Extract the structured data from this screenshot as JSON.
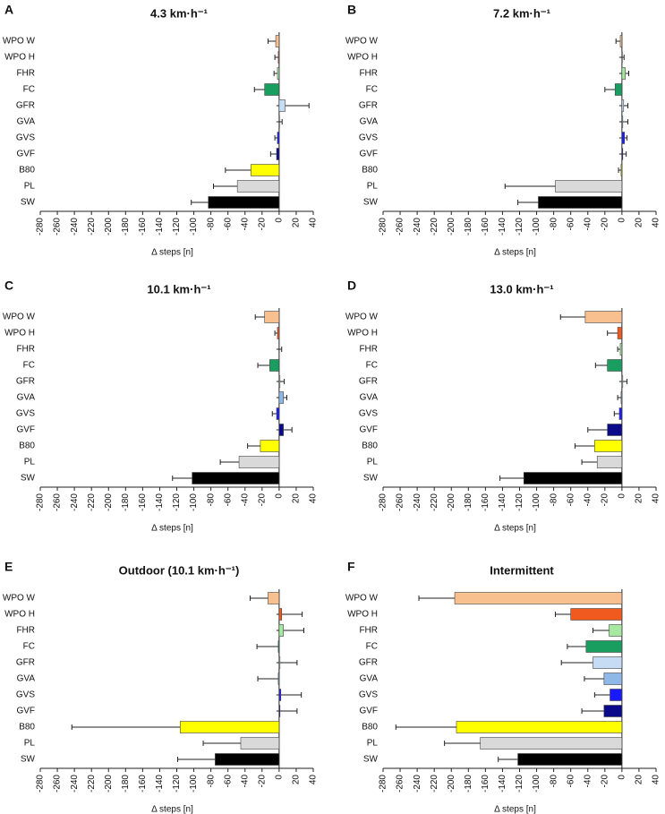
{
  "chart_data": [
    {
      "type": "bar",
      "orientation": "horizontal",
      "label": "A",
      "title": "4.3 km·h⁻¹",
      "categories": [
        "WPO W",
        "WPO H",
        "FHR",
        "FC",
        "GFR",
        "GVA",
        "GVS",
        "GVF",
        "B80",
        "PL",
        "SW"
      ],
      "values": [
        -4,
        -1,
        -2,
        -17,
        7,
        0.5,
        -2,
        -3,
        -33,
        -49,
        -83
      ],
      "errors": [
        9,
        4,
        4,
        12,
        28,
        3,
        3,
        7,
        30,
        28,
        20
      ],
      "colors": [
        "#f9c08f",
        "#f05a1e",
        "#a6e8a0",
        "#1a9e60",
        "#c6dcf5",
        "#8db8e8",
        "#1a1aff",
        "#0a0a8a",
        "#ffff00",
        "#d9d9d9",
        "#000000"
      ],
      "xlabel": "Δ steps [n]",
      "xlim": [
        -280,
        40
      ],
      "xticks": [
        -280,
        -260,
        -240,
        -220,
        -200,
        -180,
        -160,
        -140,
        -120,
        -100,
        -80,
        -60,
        -40,
        -20,
        0,
        20,
        40
      ]
    },
    {
      "type": "bar",
      "orientation": "horizontal",
      "label": "B",
      "title": "7.2 km·h⁻¹",
      "categories": [
        "WPO W",
        "WPO H",
        "FHR",
        "FC",
        "GFR",
        "GVA",
        "GVS",
        "GVF",
        "B80",
        "PL",
        "SW"
      ],
      "values": [
        -2,
        0.5,
        4,
        -8,
        2,
        1,
        3,
        1,
        -1,
        -78,
        -98
      ],
      "errors": [
        5,
        2,
        4,
        12,
        5,
        6,
        3,
        4,
        3,
        59,
        24
      ],
      "colors": [
        "#f9c08f",
        "#f05a1e",
        "#a6e8a0",
        "#1a9e60",
        "#c6dcf5",
        "#8db8e8",
        "#1a1aff",
        "#0a0a8a",
        "#ffff00",
        "#d9d9d9",
        "#000000"
      ],
      "xlabel": "Δ steps [n]",
      "xlim": [
        -280,
        40
      ],
      "xticks": [
        -280,
        -260,
        -240,
        -220,
        -200,
        -180,
        -160,
        -140,
        -120,
        -100,
        -80,
        -60,
        -40,
        -20,
        0,
        20,
        40
      ]
    },
    {
      "type": "bar",
      "orientation": "horizontal",
      "label": "C",
      "title": "10.1 km·h⁻¹",
      "categories": [
        "WPO W",
        "WPO H",
        "FHR",
        "FC",
        "GFR",
        "GVA",
        "GVS",
        "GVF",
        "B80",
        "PL",
        "SW"
      ],
      "values": [
        -17,
        -2,
        0,
        -11,
        1,
        5,
        -3,
        5,
        -22,
        -47,
        -102
      ],
      "errors": [
        11,
        3,
        3,
        14,
        5,
        4,
        5,
        10,
        15,
        22,
        23
      ],
      "colors": [
        "#f9c08f",
        "#f05a1e",
        "#a6e8a0",
        "#1a9e60",
        "#c6dcf5",
        "#8db8e8",
        "#1a1aff",
        "#0a0a8a",
        "#ffff00",
        "#d9d9d9",
        "#000000"
      ],
      "xlabel": "Δ steps [n]",
      "xlim": [
        -280,
        40
      ],
      "xticks": [
        -280,
        -260,
        -240,
        -220,
        -200,
        -180,
        -160,
        -140,
        -120,
        -100,
        -80,
        -60,
        -40,
        -20,
        0,
        20,
        40
      ]
    },
    {
      "type": "bar",
      "orientation": "horizontal",
      "label": "D",
      "title": "13.0 km·h⁻¹",
      "categories": [
        "WPO W",
        "WPO H",
        "FHR",
        "FC",
        "GFR",
        "GVA",
        "GVS",
        "GVF",
        "B80",
        "PL",
        "SW"
      ],
      "values": [
        -43,
        -5,
        -2,
        -17,
        1,
        -1,
        -3,
        -17,
        -32,
        -29,
        -115
      ],
      "errors": [
        29,
        12,
        3,
        14,
        5,
        4,
        6,
        23,
        23,
        18,
        28
      ],
      "colors": [
        "#f9c08f",
        "#f05a1e",
        "#a6e8a0",
        "#1a9e60",
        "#c6dcf5",
        "#8db8e8",
        "#1a1aff",
        "#0a0a8a",
        "#ffff00",
        "#d9d9d9",
        "#000000"
      ],
      "xlabel": "Δ steps [n]",
      "xlim": [
        -280,
        40
      ],
      "xticks": [
        -280,
        -260,
        -240,
        -220,
        -200,
        -180,
        -160,
        -140,
        -120,
        -100,
        -80,
        -60,
        -40,
        -20,
        0,
        20,
        40
      ]
    },
    {
      "type": "bar",
      "orientation": "horizontal",
      "label": "E",
      "title": "Outdoor (10.1 km·h⁻¹)",
      "categories": [
        "WPO W",
        "WPO H",
        "FHR",
        "FC",
        "GFR",
        "GVA",
        "GVS",
        "GVF",
        "B80",
        "PL",
        "SW"
      ],
      "values": [
        -13,
        3,
        5,
        -1,
        1,
        -1,
        2,
        1,
        -116,
        -45,
        -75
      ],
      "errors": [
        21,
        24,
        24,
        25,
        20,
        24,
        24,
        20,
        127,
        44,
        44
      ],
      "colors": [
        "#f9c08f",
        "#f05a1e",
        "#a6e8a0",
        "#1a9e60",
        "#c6dcf5",
        "#8db8e8",
        "#1a1aff",
        "#0a0a8a",
        "#ffff00",
        "#d9d9d9",
        "#000000"
      ],
      "xlabel": "Δ steps [n]",
      "xlim": [
        -280,
        40
      ],
      "xticks": [
        -280,
        -260,
        -240,
        -220,
        -200,
        -180,
        -160,
        -140,
        -120,
        -100,
        -80,
        -60,
        -40,
        -20,
        0,
        20,
        40
      ]
    },
    {
      "type": "bar",
      "orientation": "horizontal",
      "label": "F",
      "title": "Intermittent",
      "categories": [
        "WPO W",
        "WPO H",
        "FHR",
        "FC",
        "GFR",
        "GVA",
        "GVS",
        "GVF",
        "B80",
        "PL",
        "SW"
      ],
      "values": [
        -196,
        -60,
        -15,
        -42,
        -34,
        -21,
        -14,
        -21,
        -194,
        -166,
        -122
      ],
      "errors": [
        42,
        18,
        19,
        22,
        37,
        23,
        18,
        26,
        71,
        42,
        23
      ],
      "colors": [
        "#f9c08f",
        "#f05a1e",
        "#a6e8a0",
        "#1a9e60",
        "#c6dcf5",
        "#8db8e8",
        "#1a1aff",
        "#0a0a8a",
        "#ffff00",
        "#d9d9d9",
        "#000000"
      ],
      "xlabel": "Δ steps [n]",
      "xlim": [
        -280,
        40
      ],
      "xticks": [
        -280,
        -260,
        -240,
        -220,
        -200,
        -180,
        -160,
        -140,
        -120,
        -100,
        -80,
        -60,
        -40,
        -20,
        0,
        20,
        40
      ]
    }
  ]
}
